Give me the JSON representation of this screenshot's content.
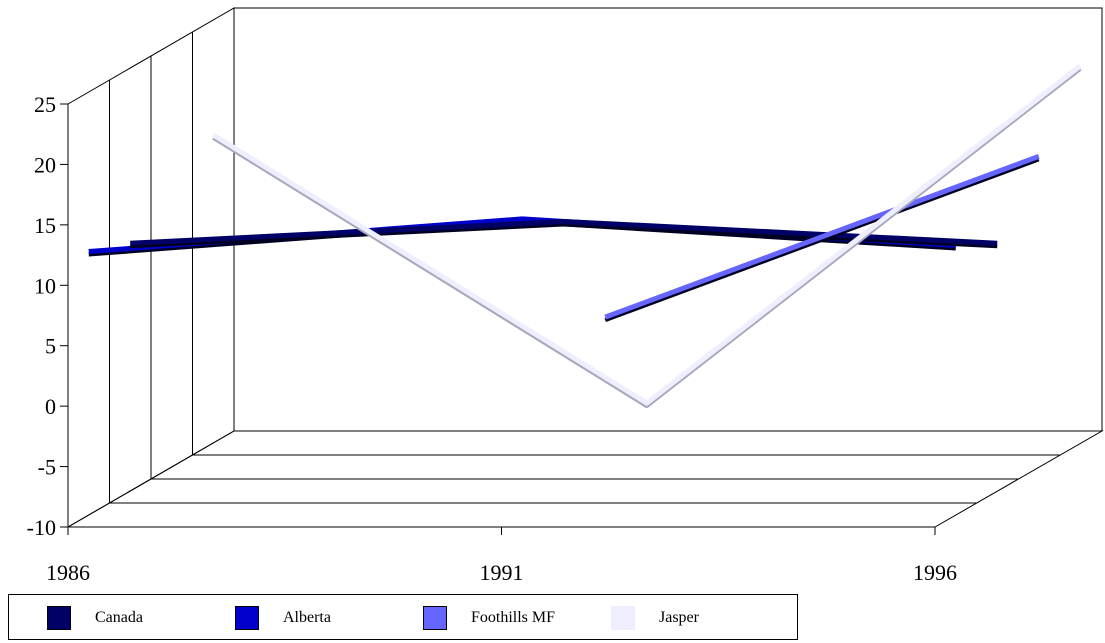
{
  "chart_data": {
    "type": "line",
    "title": "",
    "xlabel": "",
    "ylabel": "",
    "x": [
      "1986",
      "1991",
      "1996"
    ],
    "y_ticks": [
      "25",
      "20",
      "15",
      "10",
      "5",
      "0",
      "-5",
      "-10"
    ],
    "ylim": [
      -10,
      25
    ],
    "grid": false,
    "three_d": true,
    "legend_position": "bottom",
    "series": [
      {
        "name": "Canada",
        "color": "#000066",
        "values": [
          10.5,
          12.3,
          10.5
        ]
      },
      {
        "name": "Alberta",
        "color": "#0000cc",
        "values": [
          11.8,
          14.5,
          12.3
        ]
      },
      {
        "name": "Foothills MF",
        "color": "#6666ff",
        "values": [
          null,
          2.4,
          15.7
        ]
      },
      {
        "name": "Jasper",
        "color": "#eeeeff",
        "values": [
          15.5,
          -6.7,
          21.2
        ]
      }
    ]
  }
}
